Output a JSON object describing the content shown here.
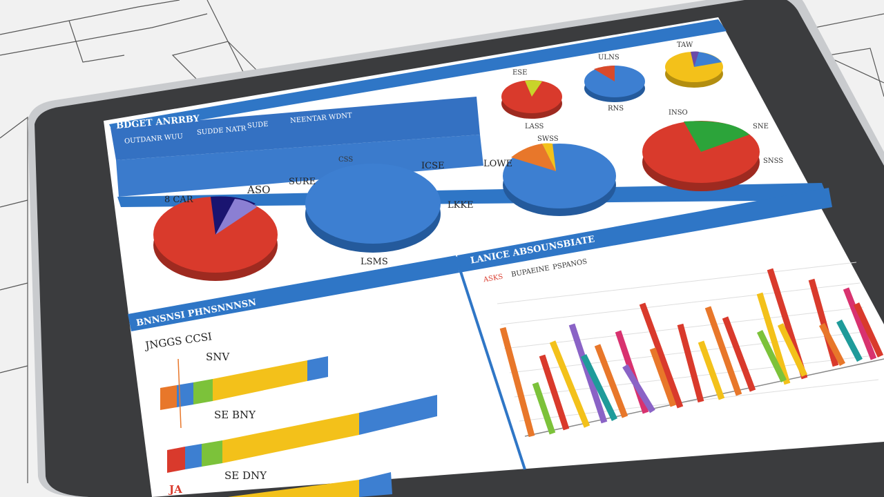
{
  "top_panel": {
    "title": "BDGET ANRRBY",
    "subtitle_items": [
      "OUTDANR WUU",
      "SUDDE NATR",
      "SUDE",
      "NEENTAR WDNT"
    ],
    "pie_labels": [
      "8 CAR",
      "ASO",
      "SURE",
      "ICSE",
      "LOWE",
      "LKKE"
    ],
    "big_pie_label": "LSMS"
  },
  "small_pies": {
    "labels": [
      "ESE",
      "ULNS",
      "RNS",
      "LASS",
      "TAW"
    ],
    "right_labels": [
      "INSO",
      "SNE",
      "SNSS",
      "SWSS",
      "CSS"
    ]
  },
  "summary": {
    "title": "BNNSNSI PHNSNNNSN",
    "subtitle": "JNGGS CCSI",
    "rows": [
      {
        "label": "SNV"
      },
      {
        "label": "SE BNY"
      },
      {
        "label": "SE DNY"
      }
    ],
    "row_marker": "JA"
  },
  "chart_panel": {
    "title": "LANICE ABSOUNSBIATE",
    "legend": [
      "ASKS",
      "BUPAEINE",
      "PSPANOS"
    ]
  },
  "colors": {
    "accent": "#2f76c6",
    "red": "#d93a2c",
    "blue": "#3d7fd1",
    "yellow": "#f3c11a",
    "green": "#7cc23a",
    "orange": "#e8772a",
    "purple": "#8a63c6",
    "teal": "#1f9b9a",
    "pink": "#d8326f"
  }
}
